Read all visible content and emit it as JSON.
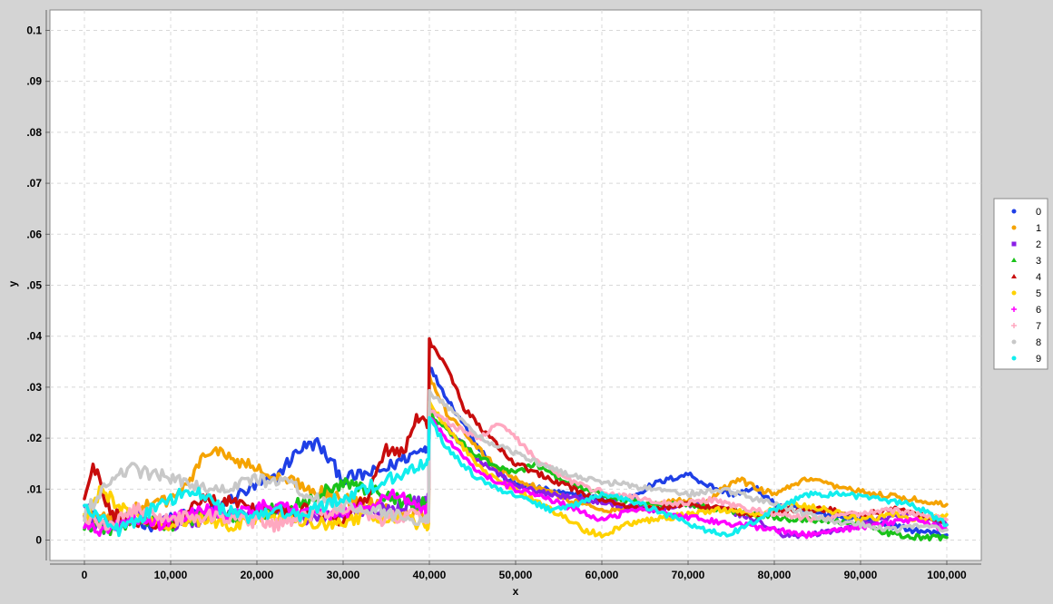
{
  "chart_data": {
    "type": "line",
    "title": "",
    "xlabel": "x",
    "ylabel": "y",
    "xlim": [
      -4000,
      104000
    ],
    "ylim": [
      -0.004,
      0.104
    ],
    "x_ticks": [
      0,
      10000,
      20000,
      30000,
      40000,
      50000,
      60000,
      70000,
      80000,
      90000,
      100000
    ],
    "x_tick_labels": [
      "0",
      "10,000",
      "20,000",
      "30,000",
      "40,000",
      "50,000",
      "60,000",
      "70,000",
      "80,000",
      "90,000",
      "100,000"
    ],
    "y_ticks": [
      0,
      0.01,
      0.02,
      0.03,
      0.04,
      0.05,
      0.06,
      0.07,
      0.08,
      0.09,
      0.1
    ],
    "y_tick_labels": [
      "0",
      ".01",
      ".02",
      ".03",
      ".04",
      ".05",
      ".06",
      ".07",
      ".08",
      ".09",
      "0.1"
    ],
    "grid": true,
    "legend_position": "right",
    "series": [
      {
        "name": "0",
        "color": "#1f3fe6",
        "marker": "circle",
        "x": [
          0,
          2000,
          5000,
          8000,
          12000,
          15000,
          18000,
          22000,
          25000,
          27000,
          30000,
          33000,
          35000,
          37000,
          39500,
          40000,
          42000,
          45000,
          48000,
          50000,
          53000,
          56000,
          60000,
          63000,
          66000,
          68000,
          70000,
          72000,
          75000,
          78000,
          80000,
          83000,
          86000,
          90000,
          93000,
          96000,
          100000
        ],
        "y": [
          0.008,
          0.003,
          0.004,
          0.003,
          0.005,
          0.006,
          0.009,
          0.012,
          0.018,
          0.019,
          0.012,
          0.013,
          0.014,
          0.016,
          0.018,
          0.034,
          0.028,
          0.02,
          0.013,
          0.011,
          0.01,
          0.009,
          0.008,
          0.008,
          0.011,
          0.012,
          0.013,
          0.011,
          0.009,
          0.01,
          0.007,
          0.006,
          0.005,
          0.004,
          0.003,
          0.002,
          0.001
        ]
      },
      {
        "name": "1",
        "color": "#f5a300",
        "marker": "circle",
        "x": [
          0,
          3000,
          6000,
          10000,
          12000,
          14500,
          17000,
          20000,
          22000,
          25000,
          28000,
          30000,
          33000,
          36000,
          39500,
          40000,
          42000,
          45000,
          48000,
          50000,
          53000,
          56000,
          60000,
          63000,
          66000,
          69000,
          72000,
          74000,
          76000,
          78000,
          80000,
          84000,
          88000,
          92000,
          96000,
          100000
        ],
        "y": [
          0.005,
          0.004,
          0.006,
          0.008,
          0.011,
          0.018,
          0.016,
          0.014,
          0.012,
          0.011,
          0.009,
          0.008,
          0.007,
          0.006,
          0.005,
          0.032,
          0.025,
          0.019,
          0.014,
          0.012,
          0.01,
          0.008,
          0.006,
          0.006,
          0.007,
          0.008,
          0.007,
          0.01,
          0.012,
          0.01,
          0.009,
          0.012,
          0.01,
          0.009,
          0.008,
          0.007
        ]
      },
      {
        "name": "2",
        "color": "#8a1ee6",
        "marker": "square",
        "x": [
          0,
          3000,
          6000,
          10000,
          14000,
          18000,
          22000,
          26000,
          30000,
          34000,
          38000,
          39500,
          40000,
          43000,
          46000,
          50000,
          54000,
          58000,
          62000,
          66000,
          70000,
          74000,
          78000,
          81000,
          84000,
          88000,
          92000,
          96000,
          100000
        ],
        "y": [
          0.004,
          0.002,
          0.005,
          0.003,
          0.004,
          0.005,
          0.006,
          0.004,
          0.005,
          0.006,
          0.007,
          0.008,
          0.026,
          0.02,
          0.015,
          0.011,
          0.009,
          0.008,
          0.007,
          0.006,
          0.007,
          0.006,
          0.004,
          0.001,
          0.001,
          0.002,
          0.004,
          0.005,
          0.003
        ]
      },
      {
        "name": "3",
        "color": "#19c219",
        "marker": "triangle",
        "x": [
          0,
          3000,
          6000,
          10000,
          14000,
          18000,
          22000,
          26000,
          30000,
          33000,
          36000,
          39500,
          40000,
          43000,
          46000,
          50000,
          52000,
          55000,
          58000,
          62000,
          66000,
          70000,
          74000,
          78000,
          82000,
          86000,
          90000,
          94000,
          97000,
          100000
        ],
        "y": [
          0.003,
          0.002,
          0.004,
          0.003,
          0.005,
          0.004,
          0.006,
          0.008,
          0.011,
          0.01,
          0.008,
          0.007,
          0.025,
          0.02,
          0.016,
          0.013,
          0.015,
          0.012,
          0.01,
          0.008,
          0.007,
          0.007,
          0.006,
          0.005,
          0.004,
          0.004,
          0.003,
          0.001,
          0.0005,
          0.0005
        ]
      },
      {
        "name": "4",
        "color": "#c80c0c",
        "marker": "triangle",
        "x": [
          0,
          1000,
          3000,
          6000,
          10000,
          14000,
          18000,
          22000,
          26000,
          30000,
          33000,
          35000,
          37000,
          38500,
          39500,
          40000,
          42000,
          44000,
          47000,
          50000,
          54000,
          58000,
          62000,
          66000,
          70000,
          74000,
          78000,
          82000,
          86000,
          90000,
          94000,
          97000,
          100000
        ],
        "y": [
          0.008,
          0.015,
          0.005,
          0.004,
          0.003,
          0.008,
          0.007,
          0.005,
          0.006,
          0.004,
          0.009,
          0.018,
          0.017,
          0.024,
          0.023,
          0.039,
          0.034,
          0.026,
          0.02,
          0.015,
          0.012,
          0.009,
          0.007,
          0.006,
          0.007,
          0.006,
          0.005,
          0.006,
          0.006,
          0.005,
          0.006,
          0.005,
          0.003
        ]
      },
      {
        "name": "5",
        "color": "#ffd200",
        "marker": "circle",
        "x": [
          0,
          2000,
          5000,
          9000,
          13000,
          17000,
          21000,
          25000,
          29000,
          33000,
          37000,
          39500,
          40000,
          43000,
          46000,
          50000,
          53000,
          56000,
          58000,
          60000,
          63000,
          66000,
          70000,
          74000,
          78000,
          82000,
          86000,
          90000,
          94000,
          97000,
          100000
        ],
        "y": [
          0.004,
          0.01,
          0.005,
          0.003,
          0.004,
          0.003,
          0.005,
          0.004,
          0.003,
          0.005,
          0.004,
          0.003,
          0.027,
          0.02,
          0.014,
          0.01,
          0.007,
          0.004,
          0.002,
          0.001,
          0.003,
          0.004,
          0.005,
          0.006,
          0.005,
          0.007,
          0.006,
          0.004,
          0.005,
          0.004,
          0.005
        ]
      },
      {
        "name": "6",
        "color": "#ff00ff",
        "marker": "cross",
        "x": [
          0,
          2000,
          5000,
          9000,
          13000,
          17000,
          21000,
          25000,
          29000,
          33000,
          36000,
          39500,
          40000,
          43000,
          46000,
          50000,
          54000,
          57000,
          60000,
          64000,
          68000,
          72000,
          76000,
          80000,
          84000,
          88000,
          92000,
          96000,
          100000
        ],
        "y": [
          0.003,
          0.002,
          0.004,
          0.003,
          0.006,
          0.005,
          0.007,
          0.006,
          0.005,
          0.007,
          0.009,
          0.006,
          0.024,
          0.018,
          0.013,
          0.01,
          0.008,
          0.006,
          0.004,
          0.006,
          0.005,
          0.004,
          0.003,
          0.002,
          0.001,
          0.002,
          0.003,
          0.004,
          0.002
        ]
      },
      {
        "name": "7",
        "color": "#ffa8c0",
        "marker": "cross",
        "x": [
          0,
          3000,
          6000,
          10000,
          14000,
          18000,
          22000,
          26000,
          30000,
          34000,
          38000,
          39500,
          40000,
          43000,
          46000,
          48000,
          50000,
          53000,
          57000,
          61000,
          65000,
          69000,
          73000,
          77000,
          81000,
          85000,
          89000,
          93000,
          97000,
          100000
        ],
        "y": [
          0.004,
          0.003,
          0.006,
          0.004,
          0.005,
          0.004,
          0.003,
          0.005,
          0.006,
          0.004,
          0.005,
          0.004,
          0.026,
          0.022,
          0.02,
          0.023,
          0.02,
          0.015,
          0.011,
          0.009,
          0.008,
          0.007,
          0.008,
          0.006,
          0.005,
          0.004,
          0.005,
          0.006,
          0.005,
          0.004
        ]
      },
      {
        "name": "8",
        "color": "#c8c8c8",
        "marker": "circle",
        "x": [
          0,
          3000,
          5000,
          8000,
          12000,
          16000,
          20000,
          24000,
          28000,
          32000,
          36000,
          39500,
          40000,
          43000,
          46000,
          50000,
          54000,
          58000,
          62000,
          66000,
          70000,
          74000,
          78000,
          82000,
          86000,
          90000,
          94000,
          97000,
          100000
        ],
        "y": [
          0.005,
          0.012,
          0.014,
          0.013,
          0.011,
          0.01,
          0.012,
          0.011,
          0.007,
          0.006,
          0.005,
          0.004,
          0.029,
          0.025,
          0.02,
          0.017,
          0.014,
          0.012,
          0.011,
          0.01,
          0.009,
          0.01,
          0.008,
          0.006,
          0.004,
          0.003,
          0.002,
          0.003,
          0.002
        ]
      },
      {
        "name": "9",
        "color": "#11eeee",
        "marker": "circle",
        "x": [
          0,
          2000,
          4000,
          7000,
          10000,
          13000,
          16000,
          19000,
          22000,
          25000,
          28000,
          31000,
          34000,
          37000,
          39500,
          40000,
          42000,
          45000,
          48000,
          51000,
          54000,
          57000,
          60000,
          63000,
          66000,
          69000,
          72000,
          74000,
          76000,
          78000,
          80000,
          84000,
          88000,
          92000,
          96000,
          100000
        ],
        "y": [
          0.007,
          0.004,
          0.002,
          0.005,
          0.008,
          0.01,
          0.006,
          0.004,
          0.006,
          0.005,
          0.007,
          0.009,
          0.011,
          0.013,
          0.015,
          0.024,
          0.018,
          0.013,
          0.01,
          0.008,
          0.006,
          0.007,
          0.009,
          0.008,
          0.006,
          0.004,
          0.002,
          0.001,
          0.002,
          0.004,
          0.006,
          0.009,
          0.009,
          0.008,
          0.007,
          0.003
        ]
      }
    ]
  }
}
